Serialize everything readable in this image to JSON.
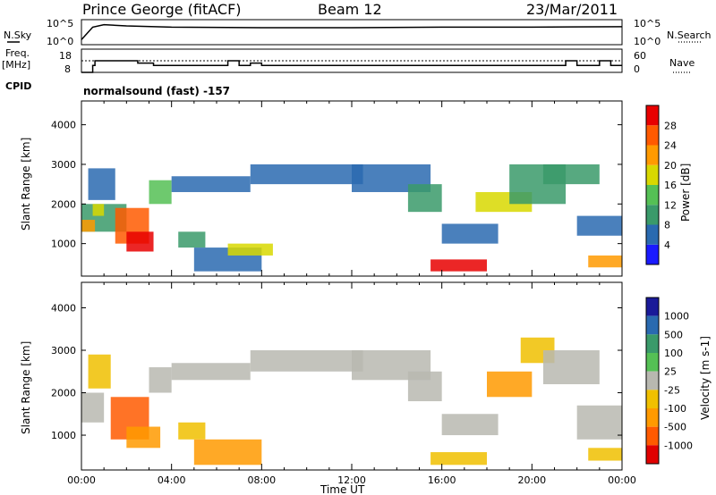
{
  "header": {
    "station": "Prince George (fitACF)",
    "beam": "Beam 12",
    "date": "23/Mar/2011"
  },
  "panels": {
    "nsky": {
      "left_label": "N.Sky",
      "right_label": "N.Search",
      "ticks_left": [
        "10^5",
        "10^0"
      ],
      "ticks_right": [
        "10^5",
        "10^0"
      ]
    },
    "freq": {
      "left_label_1": "Freq.",
      "left_label_2": "[MHz]",
      "right_label": "Nave",
      "ticks_left": [
        "18",
        "8"
      ],
      "ticks_right": [
        "60",
        "0"
      ]
    },
    "cpid": {
      "label": "CPID",
      "text": "normalsound (fast) -157"
    }
  },
  "chart_data": [
    {
      "type": "heatmap",
      "name": "power",
      "ylabel": "Slant Range [km]",
      "yticks": [
        "1000",
        "2000",
        "3000",
        "4000"
      ],
      "ylim": [
        180,
        4600
      ],
      "xlim": [
        0,
        24
      ],
      "colorbar": {
        "label": "Power [dB]",
        "ticks": [
          "4",
          "8",
          "12",
          "16",
          "20",
          "24",
          "28"
        ],
        "colors": [
          "#1a1aff",
          "#2a6ab0",
          "#3a9a6a",
          "#55c055",
          "#d8d800",
          "#ff9a00",
          "#ff5a00",
          "#e80000"
        ]
      },
      "regions": [
        {
          "t0": 0.0,
          "t1": 2.0,
          "r0": 1300,
          "r1": 2000,
          "color": "#3a9a6a"
        },
        {
          "t0": 0.0,
          "t1": 0.6,
          "r0": 1300,
          "r1": 1600,
          "color": "#ff9a00"
        },
        {
          "t0": 0.5,
          "t1": 1.0,
          "r0": 1700,
          "r1": 2000,
          "color": "#d8d800"
        },
        {
          "t0": 0.3,
          "t1": 1.5,
          "r0": 2100,
          "r1": 2900,
          "color": "#2a6ab0"
        },
        {
          "t0": 1.5,
          "t1": 3.0,
          "r0": 1000,
          "r1": 1900,
          "color": "#ff5a00"
        },
        {
          "t0": 2.0,
          "t1": 3.2,
          "r0": 800,
          "r1": 1300,
          "color": "#e80000"
        },
        {
          "t0": 3.0,
          "t1": 4.0,
          "r0": 2000,
          "r1": 2600,
          "color": "#55c055"
        },
        {
          "t0": 4.0,
          "t1": 7.5,
          "r0": 2300,
          "r1": 2700,
          "color": "#2a6ab0"
        },
        {
          "t0": 4.3,
          "t1": 5.5,
          "r0": 900,
          "r1": 1300,
          "color": "#3a9a6a"
        },
        {
          "t0": 5.0,
          "t1": 8.0,
          "r0": 300,
          "r1": 900,
          "color": "#2a6ab0"
        },
        {
          "t0": 6.5,
          "t1": 8.5,
          "r0": 700,
          "r1": 1000,
          "color": "#d8d800"
        },
        {
          "t0": 7.5,
          "t1": 12.5,
          "r0": 2500,
          "r1": 3000,
          "color": "#2a6ab0"
        },
        {
          "t0": 12.0,
          "t1": 15.5,
          "r0": 2300,
          "r1": 3000,
          "color": "#2a6ab0"
        },
        {
          "t0": 14.5,
          "t1": 16.0,
          "r0": 1800,
          "r1": 2500,
          "color": "#3a9a6a"
        },
        {
          "t0": 15.5,
          "t1": 18.0,
          "r0": 300,
          "r1": 600,
          "color": "#e80000"
        },
        {
          "t0": 16.0,
          "t1": 18.5,
          "r0": 1000,
          "r1": 1500,
          "color": "#2a6ab0"
        },
        {
          "t0": 17.5,
          "t1": 20.0,
          "r0": 1800,
          "r1": 2300,
          "color": "#d8d800"
        },
        {
          "t0": 19.0,
          "t1": 21.5,
          "r0": 2000,
          "r1": 3000,
          "color": "#3a9a6a"
        },
        {
          "t0": 20.5,
          "t1": 23.0,
          "r0": 2500,
          "r1": 3000,
          "color": "#3a9a6a"
        },
        {
          "t0": 22.0,
          "t1": 24.0,
          "r0": 1200,
          "r1": 1700,
          "color": "#2a6ab0"
        },
        {
          "t0": 22.5,
          "t1": 24.0,
          "r0": 400,
          "r1": 700,
          "color": "#ff9a00"
        }
      ]
    },
    {
      "type": "heatmap",
      "name": "velocity",
      "xlabel": "Time UT",
      "ylabel": "Slant Range [km]",
      "xticks": [
        "00:00",
        "04:00",
        "08:00",
        "12:00",
        "16:00",
        "20:00",
        "00:00"
      ],
      "yticks": [
        "1000",
        "2000",
        "3000",
        "4000"
      ],
      "ylim": [
        180,
        4600
      ],
      "xlim": [
        0,
        24
      ],
      "colorbar": {
        "label": "Velocity [m s-1]",
        "ticks": [
          "1000",
          "500",
          "100",
          "25",
          "-25",
          "-100",
          "-500",
          "-1000"
        ],
        "colors": [
          "#1a1a99",
          "#2a6ab0",
          "#3a9a6a",
          "#55c055",
          "#b8b8b0",
          "#f0c000",
          "#ff9a00",
          "#ff5a00",
          "#e00000"
        ]
      },
      "regions": [
        {
          "t0": 0.0,
          "t1": 1.0,
          "r0": 1300,
          "r1": 2000,
          "color": "#b8b8b0"
        },
        {
          "t0": 0.3,
          "t1": 1.3,
          "r0": 2100,
          "r1": 2900,
          "color": "#f0c000"
        },
        {
          "t0": 1.3,
          "t1": 3.0,
          "r0": 900,
          "r1": 1900,
          "color": "#ff5a00"
        },
        {
          "t0": 2.0,
          "t1": 3.5,
          "r0": 700,
          "r1": 1200,
          "color": "#ff9a00"
        },
        {
          "t0": 3.0,
          "t1": 4.0,
          "r0": 2000,
          "r1": 2600,
          "color": "#b8b8b0"
        },
        {
          "t0": 4.0,
          "t1": 7.5,
          "r0": 2300,
          "r1": 2700,
          "color": "#b8b8b0"
        },
        {
          "t0": 4.3,
          "t1": 5.5,
          "r0": 900,
          "r1": 1300,
          "color": "#f0c000"
        },
        {
          "t0": 5.0,
          "t1": 8.0,
          "r0": 300,
          "r1": 900,
          "color": "#ff9a00"
        },
        {
          "t0": 7.5,
          "t1": 12.5,
          "r0": 2500,
          "r1": 3000,
          "color": "#b8b8b0"
        },
        {
          "t0": 12.0,
          "t1": 15.5,
          "r0": 2300,
          "r1": 3000,
          "color": "#b8b8b0"
        },
        {
          "t0": 14.5,
          "t1": 16.0,
          "r0": 1800,
          "r1": 2500,
          "color": "#b8b8b0"
        },
        {
          "t0": 15.5,
          "t1": 18.0,
          "r0": 300,
          "r1": 600,
          "color": "#f0c000"
        },
        {
          "t0": 16.0,
          "t1": 18.5,
          "r0": 1000,
          "r1": 1500,
          "color": "#b8b8b0"
        },
        {
          "t0": 18.0,
          "t1": 20.0,
          "r0": 1900,
          "r1": 2500,
          "color": "#ff9a00"
        },
        {
          "t0": 19.5,
          "t1": 21.0,
          "r0": 2700,
          "r1": 3300,
          "color": "#f0c000"
        },
        {
          "t0": 20.5,
          "t1": 23.0,
          "r0": 2200,
          "r1": 3000,
          "color": "#b8b8b0"
        },
        {
          "t0": 22.0,
          "t1": 24.0,
          "r0": 900,
          "r1": 1700,
          "color": "#b8b8b0"
        },
        {
          "t0": 22.5,
          "t1": 24.0,
          "r0": 400,
          "r1": 700,
          "color": "#f0c000"
        }
      ]
    },
    {
      "type": "line",
      "name": "frequency",
      "x": [
        0,
        0.5,
        0.6,
        1.5,
        2.5,
        3.2,
        6.0,
        6.5,
        7.0,
        7.5,
        8.0,
        15.5,
        16.0,
        20.5,
        21.5,
        22.0,
        23.0,
        23.5,
        24.0
      ],
      "y": [
        8,
        11,
        13,
        13,
        12,
        11,
        11,
        13,
        11,
        12,
        11,
        11,
        11,
        11,
        13,
        11,
        13,
        11,
        11
      ]
    },
    {
      "type": "line",
      "name": "nsky",
      "x": [
        0,
        0.5,
        1,
        2,
        4,
        8,
        12,
        16,
        20,
        24
      ],
      "y": [
        0.2,
        0.7,
        0.8,
        0.75,
        0.7,
        0.68,
        0.68,
        0.7,
        0.7,
        0.72
      ]
    }
  ]
}
